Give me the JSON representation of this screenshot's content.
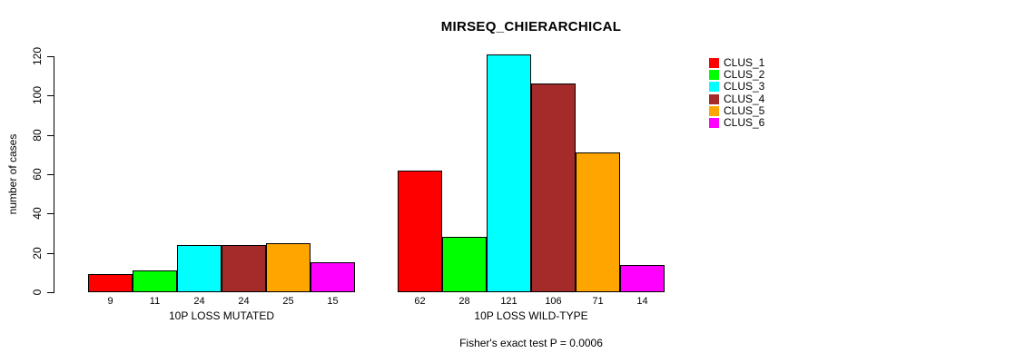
{
  "chart_data": {
    "type": "bar",
    "title": "MIRSEQ_CHIERARCHICAL",
    "ylabel": "number of cases",
    "caption": "Fisher's exact test P = 0.0006",
    "groups": [
      {
        "label": "10P LOSS MUTATED",
        "values": [
          9,
          11,
          24,
          24,
          25,
          15
        ]
      },
      {
        "label": "10P LOSS WILD-TYPE",
        "values": [
          62,
          28,
          121,
          106,
          71,
          14
        ]
      }
    ],
    "series_names": [
      "CLUS_1",
      "CLUS_2",
      "CLUS_3",
      "CLUS_4",
      "CLUS_5",
      "CLUS_6"
    ],
    "series_colors": [
      "#ff0000",
      "#00ff00",
      "#00ffff",
      "#a52a2a",
      "#ffa500",
      "#ff00ff"
    ],
    "y_ticks": [
      0,
      20,
      40,
      60,
      80,
      100,
      120
    ],
    "ylim": [
      0,
      120
    ],
    "legend_position": "right",
    "grid": false,
    "bar_border_color": "#000000",
    "background_color": "#ffffff"
  }
}
